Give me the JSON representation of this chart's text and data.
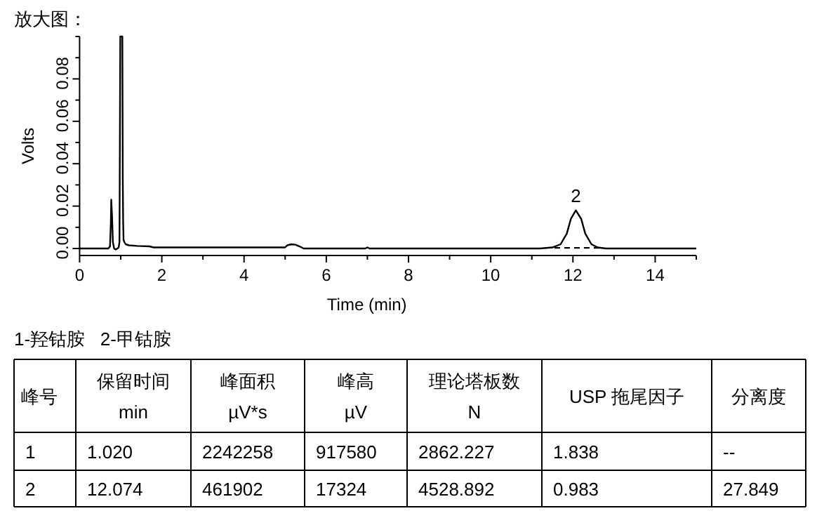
{
  "chart_data": [
    {
      "type": "line",
      "title": "放大图：",
      "xlabel": "Time (min)",
      "ylabel": "Volts",
      "annotations": [
        {
          "text": "2",
          "x": 12.07,
          "y": 0.018
        }
      ],
      "xlim": [
        0,
        15
      ],
      "ylim": [
        -0.0033,
        0.1
      ],
      "xticks": [
        0,
        {
          "value": 1,
          "label": null
        },
        2,
        {
          "value": 3,
          "label": null
        },
        4,
        {
          "value": 5,
          "label": null
        },
        6,
        {
          "value": 7,
          "label": null
        },
        8,
        {
          "value": 9,
          "label": null
        },
        10,
        {
          "value": 11,
          "label": null
        },
        12,
        {
          "value": 13,
          "label": null
        },
        14,
        {
          "value": 15,
          "label": null
        }
      ],
      "yticks": [
        {
          "value": 0,
          "label": "0.00"
        },
        {
          "value": 0.01,
          "label": null
        },
        {
          "value": 0.02,
          "label": "0.02"
        },
        {
          "value": 0.03,
          "label": null
        },
        {
          "value": 0.04,
          "label": "0.04"
        },
        {
          "value": 0.05,
          "label": null
        },
        {
          "value": 0.06,
          "label": "0.06"
        },
        {
          "value": 0.07,
          "label": null
        },
        {
          "value": 0.08,
          "label": "0.08"
        },
        {
          "value": 0.09,
          "label": null
        },
        {
          "value": 0.1,
          "label": null
        }
      ],
      "grid": false,
      "marker": "none",
      "series": [
        {
          "color": "#000000",
          "line_style": "solid",
          "x": [
            0,
            0.7,
            0.74,
            0.76,
            0.77,
            0.79,
            0.81,
            0.84,
            0.88,
            0.92,
            0.95,
            0.97,
            0.98,
            0.99,
            1.04,
            1.05,
            1.06,
            1.07,
            1.09,
            1.12,
            1.2,
            1.4,
            1.7,
            1.8,
            2,
            3,
            4,
            5,
            5.05,
            5.15,
            5.25,
            5.35,
            5.45,
            6.95,
            7.0,
            7.05,
            11.2,
            11.5,
            11.7,
            11.85,
            11.95,
            12.07,
            12.2,
            12.3,
            12.45,
            12.6,
            12.8,
            15
          ],
          "values": [
            0,
            0,
            0.001,
            0.012,
            0.023,
            0.015,
            0.003,
            0.0,
            -0.0005,
            0.0,
            0.0005,
            0.003,
            0.05,
            0.1,
            0.1,
            0.033,
            0.012,
            0.004,
            0.003,
            0.002,
            0.0015,
            0.0012,
            0.001,
            0.0005,
            0.0005,
            0.0005,
            0.0005,
            0.0005,
            0.0015,
            0.002,
            0.0018,
            0.001,
            0,
            0,
            0.0005,
            0,
            0,
            0.0005,
            0.002,
            0.007,
            0.014,
            0.018,
            0.014,
            0.007,
            0.002,
            0.0005,
            0,
            0
          ]
        },
        {
          "color": "#000000",
          "line_style": "dashed",
          "x": [
            11.55,
            12.7
          ],
          "values": [
            0.0003,
            0.0003
          ]
        }
      ]
    },
    {
      "type": "other",
      "title": "1-羟钴胺   2-甲钴胺",
      "annotations": [
        "峰号",
        "保留时间\nmin",
        "峰面积\nµV*s",
        "峰高\nµV",
        "理论塔板数\nN",
        "USP 拖尾因子",
        "分离度",
        "1",
        "1.020",
        "2242258",
        "917580",
        "2862.227",
        "1.838",
        "--",
        "2",
        "12.074",
        "461902",
        "17324",
        "4528.892",
        "0.983",
        "27.849"
      ]
    }
  ]
}
